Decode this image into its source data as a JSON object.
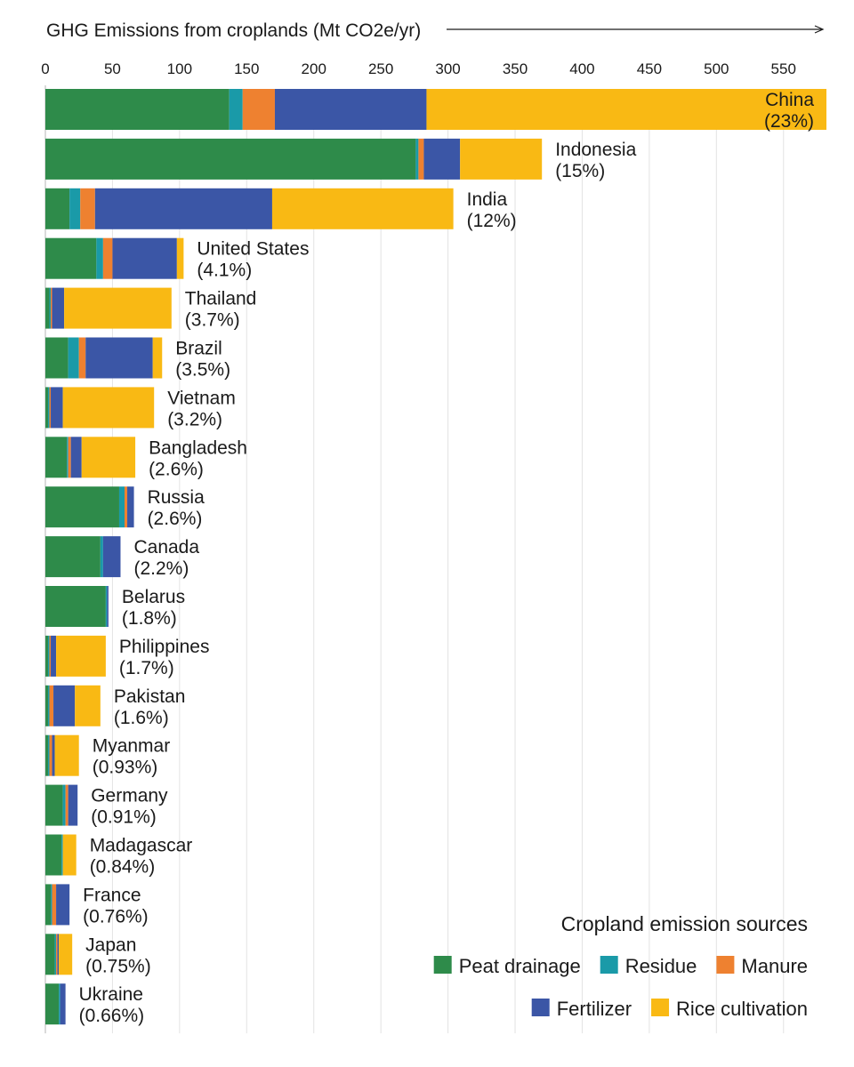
{
  "chart_data": {
    "type": "bar",
    "orientation": "horizontal",
    "stacked": true,
    "title": "GHG Emissions from croplands (Mt CO2e/yr)",
    "xlim": [
      0,
      580
    ],
    "x_ticks": [
      "0",
      "50",
      "100",
      "150",
      "200",
      "250",
      "300",
      "350",
      "400",
      "450",
      "500",
      "550"
    ],
    "grid": "vertical",
    "legend_title": "Cropland emission sources",
    "legend_position": "bottom-right",
    "categories": [
      "China",
      "Indonesia",
      "India",
      "United States",
      "Thailand",
      "Brazil",
      "Vietnam",
      "Bangladesh",
      "Russia",
      "Canada",
      "Belarus",
      "Philippines",
      "Pakistan",
      "Myanmar",
      "Germany",
      "Madagascar",
      "France",
      "Japan",
      "Ukraine"
    ],
    "shares": [
      "(23%)",
      "(15%)",
      "(12%)",
      "(4.1%)",
      "(3.7%)",
      "(3.5%)",
      "(3.2%)",
      "(2.6%)",
      "(2.6%)",
      "(2.2%)",
      "(1.8%)",
      "(1.7%)",
      "(1.6%)",
      "(0.93%)",
      "(0.91%)",
      "(0.84%)",
      "(0.76%)",
      "(0.75%)",
      "(0.66%)"
    ],
    "series": [
      {
        "name": "Peat drainage",
        "color": "#2e8b4a",
        "values": [
          137,
          276,
          18,
          38,
          3,
          17,
          2,
          16,
          55,
          41,
          45,
          2,
          2,
          2,
          13,
          12,
          4,
          7,
          10
        ]
      },
      {
        "name": "Residue",
        "color": "#1a9aa8",
        "values": [
          10,
          2,
          8,
          5,
          1,
          8,
          1,
          1,
          4,
          2,
          1,
          1,
          1,
          1,
          2,
          1,
          1,
          1,
          1
        ]
      },
      {
        "name": "Manure",
        "color": "#ee8130",
        "values": [
          24,
          4,
          11,
          7,
          1,
          5,
          1,
          2,
          2,
          0,
          0,
          1,
          3,
          2,
          2,
          0,
          3,
          1,
          0
        ]
      },
      {
        "name": "Fertilizer",
        "color": "#3b56a6",
        "values": [
          113,
          27,
          132,
          48,
          9,
          50,
          9,
          8,
          5,
          13,
          1,
          4,
          16,
          2,
          7,
          0,
          10,
          1,
          4
        ]
      },
      {
        "name": "Rice cultivation",
        "color": "#f9b914",
        "values": [
          298,
          61,
          135,
          5,
          80,
          7,
          68,
          40,
          0,
          0,
          0,
          37,
          19,
          18,
          0,
          10,
          0,
          10,
          0
        ]
      }
    ],
    "legend_rows": [
      [
        "Peat drainage",
        "Residue",
        "Manure"
      ],
      [
        "Fertilizer",
        "Rice cultivation"
      ]
    ]
  }
}
